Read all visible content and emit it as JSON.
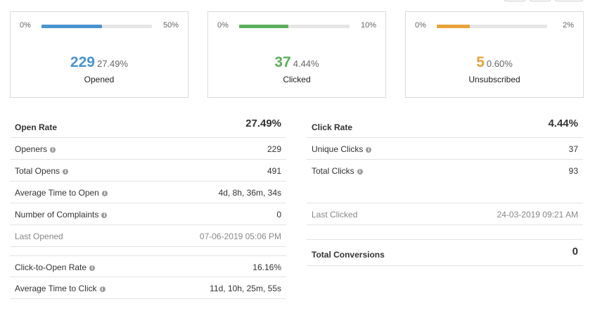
{
  "colors": {
    "blue": "#4a94cf",
    "green": "#5cae5c",
    "orange": "#e9a23b"
  },
  "cards": [
    {
      "min": "0%",
      "max": "50%",
      "count": "229",
      "pct": "27.49%",
      "label": "Opened",
      "fill_fraction": 0.55,
      "color": "#4a94cf"
    },
    {
      "min": "0%",
      "max": "10%",
      "count": "37",
      "pct": "4.44%",
      "label": "Clicked",
      "fill_fraction": 0.444,
      "color": "#5cae5c"
    },
    {
      "min": "0%",
      "max": "2%",
      "count": "5",
      "pct": "0.60%",
      "label": "Unsubscribed",
      "fill_fraction": 0.3,
      "color": "#e9a23b"
    }
  ],
  "open": {
    "title": "Open Rate",
    "value": "27.49%",
    "rows": [
      {
        "label": "Openers",
        "value": "229"
      },
      {
        "label": "Total Opens",
        "value": "491"
      },
      {
        "label": "Average Time to Open",
        "value": "4d, 8h, 36m, 34s"
      },
      {
        "label": "Number of Complaints",
        "value": "0"
      },
      {
        "label": "Last Opened",
        "value": "07-06-2019 05:06 PM"
      },
      {
        "label": "Click-to-Open Rate",
        "value": "16.16%"
      },
      {
        "label": "Average Time to Click",
        "value": "11d, 10h, 25m, 55s"
      }
    ]
  },
  "click": {
    "title": "Click Rate",
    "value": "4.44%",
    "rows": [
      {
        "label": "Unique Clicks",
        "value": "37"
      },
      {
        "label": "Total Clicks",
        "value": "93"
      },
      {
        "label": "Last Clicked",
        "value": "24-03-2019 09:21 AM"
      }
    ],
    "conversions_label": "Total Conversions",
    "conversions_value": "0"
  },
  "icons": {
    "info": "info-icon"
  }
}
